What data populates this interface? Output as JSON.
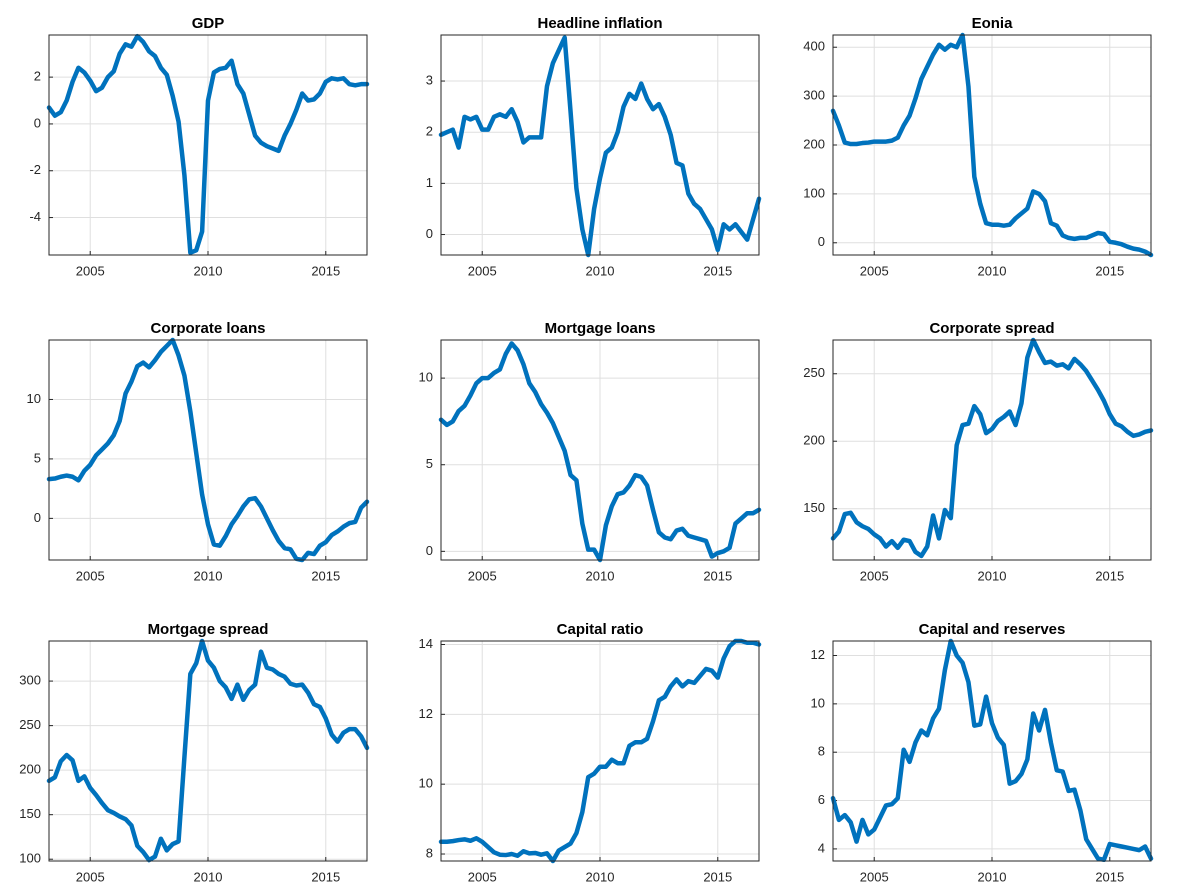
{
  "chart_data": [
    {
      "type": "line",
      "title": "GDP",
      "color": "#0072BD",
      "grid": true,
      "x": [
        2003.25,
        2003.5,
        2003.75,
        2004,
        2004.25,
        2004.5,
        2004.75,
        2005,
        2005.25,
        2005.5,
        2005.75,
        2006,
        2006.25,
        2006.5,
        2006.75,
        2007,
        2007.25,
        2007.5,
        2007.75,
        2008,
        2008.25,
        2008.5,
        2008.75,
        2009,
        2009.25,
        2009.5,
        2009.75,
        2010,
        2010.25,
        2010.5,
        2010.75,
        2011,
        2011.25,
        2011.5,
        2011.75,
        2012,
        2012.25,
        2012.5,
        2012.75,
        2013,
        2013.25,
        2013.5,
        2013.75,
        2014,
        2014.25,
        2014.5,
        2014.75,
        2015,
        2015.25,
        2015.5,
        2015.75,
        2016,
        2016.25,
        2016.5,
        2016.75
      ],
      "values": [
        0.7,
        0.35,
        0.5,
        1.0,
        1.8,
        2.4,
        2.2,
        1.85,
        1.4,
        1.55,
        2.0,
        2.25,
        3.0,
        3.4,
        3.3,
        3.75,
        3.5,
        3.1,
        2.9,
        2.4,
        2.1,
        1.2,
        0.1,
        -2.2,
        -5.5,
        -5.4,
        -4.6,
        1.0,
        2.2,
        2.35,
        2.4,
        2.7,
        1.7,
        1.3,
        0.4,
        -0.5,
        -0.8,
        -0.95,
        -1.05,
        -1.15,
        -0.5,
        0.0,
        0.6,
        1.3,
        1.0,
        1.05,
        1.3,
        1.8,
        1.95,
        1.9,
        1.95,
        1.7,
        1.65,
        1.7,
        1.7
      ],
      "xlim": [
        2003.25,
        2016.75
      ],
      "xticks": [
        2005,
        2010,
        2015
      ],
      "ylim": [
        -5.6,
        3.8
      ],
      "yticks": [
        -4,
        -2,
        0,
        2
      ]
    },
    {
      "type": "line",
      "title": "Headline inflation",
      "color": "#0072BD",
      "grid": true,
      "x": [
        2003.25,
        2003.5,
        2003.75,
        2004,
        2004.25,
        2004.5,
        2004.75,
        2005,
        2005.25,
        2005.5,
        2005.75,
        2006,
        2006.25,
        2006.5,
        2006.75,
        2007,
        2007.25,
        2007.5,
        2007.75,
        2008,
        2008.25,
        2008.5,
        2008.75,
        2009,
        2009.25,
        2009.5,
        2009.75,
        2010,
        2010.25,
        2010.5,
        2010.75,
        2011,
        2011.25,
        2011.5,
        2011.75,
        2012,
        2012.25,
        2012.5,
        2012.75,
        2013,
        2013.25,
        2013.5,
        2013.75,
        2014,
        2014.25,
        2014.5,
        2014.75,
        2015,
        2015.25,
        2015.5,
        2015.75,
        2016,
        2016.25,
        2016.5,
        2016.75
      ],
      "values": [
        1.95,
        2.0,
        2.05,
        1.7,
        2.3,
        2.25,
        2.3,
        2.05,
        2.05,
        2.3,
        2.35,
        2.3,
        2.45,
        2.2,
        1.8,
        1.9,
        1.9,
        1.9,
        2.9,
        3.35,
        3.6,
        3.85,
        2.4,
        0.9,
        0.1,
        -0.4,
        0.5,
        1.1,
        1.6,
        1.7,
        2.0,
        2.5,
        2.75,
        2.65,
        2.95,
        2.65,
        2.45,
        2.55,
        2.3,
        1.95,
        1.4,
        1.35,
        0.8,
        0.6,
        0.5,
        0.3,
        0.1,
        -0.3,
        0.2,
        0.1,
        0.2,
        0.05,
        -0.1,
        0.3,
        0.7
      ],
      "xlim": [
        2003.25,
        2016.75
      ],
      "xticks": [
        2005,
        2010,
        2015
      ],
      "ylim": [
        -0.4,
        3.9
      ],
      "yticks": [
        0,
        1,
        2,
        3
      ]
    },
    {
      "type": "line",
      "title": "Eonia",
      "color": "#0072BD",
      "grid": true,
      "x": [
        2003.25,
        2003.5,
        2003.75,
        2004,
        2004.25,
        2004.5,
        2004.75,
        2005,
        2005.25,
        2005.5,
        2005.75,
        2006,
        2006.25,
        2006.5,
        2006.75,
        2007,
        2007.25,
        2007.5,
        2007.75,
        2008,
        2008.25,
        2008.5,
        2008.75,
        2009,
        2009.25,
        2009.5,
        2009.75,
        2010,
        2010.25,
        2010.5,
        2010.75,
        2011,
        2011.25,
        2011.5,
        2011.75,
        2012,
        2012.25,
        2012.5,
        2012.75,
        2013,
        2013.25,
        2013.5,
        2013.75,
        2014,
        2014.25,
        2014.5,
        2014.75,
        2015,
        2015.25,
        2015.5,
        2015.75,
        2016,
        2016.25,
        2016.5,
        2016.75
      ],
      "values": [
        270,
        240,
        205,
        202,
        202,
        204,
        205,
        207,
        207,
        207,
        209,
        215,
        240,
        260,
        295,
        335,
        360,
        385,
        405,
        395,
        405,
        400,
        425,
        320,
        135,
        80,
        40,
        37,
        37,
        35,
        37,
        50,
        60,
        70,
        105,
        100,
        85,
        40,
        35,
        15,
        10,
        8,
        10,
        10,
        15,
        20,
        18,
        2,
        0,
        -3,
        -8,
        -12,
        -14,
        -18,
        -25
      ],
      "xlim": [
        2003.25,
        2016.75
      ],
      "xticks": [
        2005,
        2010,
        2015
      ],
      "ylim": [
        -25,
        425
      ],
      "yticks": [
        0,
        100,
        200,
        300,
        400
      ]
    },
    {
      "type": "line",
      "title": "Corporate loans",
      "color": "#0072BD",
      "grid": true,
      "x": [
        2003.25,
        2003.5,
        2003.75,
        2004,
        2004.25,
        2004.5,
        2004.75,
        2005,
        2005.25,
        2005.5,
        2005.75,
        2006,
        2006.25,
        2006.5,
        2006.75,
        2007,
        2007.25,
        2007.5,
        2007.75,
        2008,
        2008.25,
        2008.5,
        2008.75,
        2009,
        2009.25,
        2009.5,
        2009.75,
        2010,
        2010.25,
        2010.5,
        2010.75,
        2011,
        2011.25,
        2011.5,
        2011.75,
        2012,
        2012.25,
        2012.5,
        2012.75,
        2013,
        2013.25,
        2013.5,
        2013.75,
        2014,
        2014.25,
        2014.5,
        2014.75,
        2015,
        2015.25,
        2015.5,
        2015.75,
        2016,
        2016.25,
        2016.5,
        2016.75
      ],
      "values": [
        3.3,
        3.35,
        3.5,
        3.6,
        3.5,
        3.2,
        4.0,
        4.5,
        5.3,
        5.8,
        6.3,
        7.0,
        8.2,
        10.5,
        11.5,
        12.8,
        13.1,
        12.7,
        13.3,
        14.0,
        14.5,
        15.0,
        13.7,
        12.0,
        9.0,
        5.5,
        2.0,
        -0.5,
        -2.2,
        -2.3,
        -1.5,
        -0.5,
        0.2,
        1.0,
        1.6,
        1.7,
        1.0,
        0.0,
        -1.0,
        -1.9,
        -2.5,
        -2.6,
        -3.4,
        -3.5,
        -2.9,
        -3.0,
        -2.3,
        -2.0,
        -1.4,
        -1.1,
        -0.7,
        -0.4,
        -0.3,
        0.9,
        1.4
      ],
      "xlim": [
        2003.25,
        2016.75
      ],
      "xticks": [
        2005,
        2010,
        2015
      ],
      "ylim": [
        -3.5,
        15
      ],
      "yticks": [
        0,
        5,
        10
      ]
    },
    {
      "type": "line",
      "title": "Mortgage loans",
      "color": "#0072BD",
      "grid": true,
      "x": [
        2003.25,
        2003.5,
        2003.75,
        2004,
        2004.25,
        2004.5,
        2004.75,
        2005,
        2005.25,
        2005.5,
        2005.75,
        2006,
        2006.25,
        2006.5,
        2006.75,
        2007,
        2007.25,
        2007.5,
        2007.75,
        2008,
        2008.25,
        2008.5,
        2008.75,
        2009,
        2009.25,
        2009.5,
        2009.75,
        2010,
        2010.25,
        2010.5,
        2010.75,
        2011,
        2011.25,
        2011.5,
        2011.75,
        2012,
        2012.25,
        2012.5,
        2012.75,
        2013,
        2013.25,
        2013.5,
        2013.75,
        2014,
        2014.25,
        2014.5,
        2014.75,
        2015,
        2015.25,
        2015.5,
        2015.75,
        2016,
        2016.25,
        2016.5,
        2016.75
      ],
      "values": [
        7.6,
        7.3,
        7.5,
        8.1,
        8.4,
        9.0,
        9.7,
        10.0,
        10.0,
        10.3,
        10.5,
        11.4,
        12.0,
        11.6,
        10.8,
        9.7,
        9.2,
        8.5,
        8.0,
        7.4,
        6.6,
        5.8,
        4.4,
        4.1,
        1.6,
        0.1,
        0.1,
        -0.5,
        1.5,
        2.6,
        3.3,
        3.4,
        3.8,
        4.4,
        4.3,
        3.8,
        2.4,
        1.1,
        0.8,
        0.7,
        1.2,
        1.3,
        0.9,
        0.8,
        0.7,
        0.6,
        -0.3,
        -0.1,
        0.0,
        0.2,
        1.6,
        1.9,
        2.2,
        2.2,
        2.4
      ],
      "xlim": [
        2003.25,
        2016.75
      ],
      "xticks": [
        2005,
        2010,
        2015
      ],
      "ylim": [
        -0.5,
        12.2
      ],
      "yticks": [
        0,
        5,
        10
      ]
    },
    {
      "type": "line",
      "title": "Corporate spread",
      "color": "#0072BD",
      "grid": true,
      "x": [
        2003.25,
        2003.5,
        2003.75,
        2004,
        2004.25,
        2004.5,
        2004.75,
        2005,
        2005.25,
        2005.5,
        2005.75,
        2006,
        2006.25,
        2006.5,
        2006.75,
        2007,
        2007.25,
        2007.5,
        2007.75,
        2008,
        2008.25,
        2008.5,
        2008.75,
        2009,
        2009.25,
        2009.5,
        2009.75,
        2010,
        2010.25,
        2010.5,
        2010.75,
        2011,
        2011.25,
        2011.5,
        2011.75,
        2012,
        2012.25,
        2012.5,
        2012.75,
        2013,
        2013.25,
        2013.5,
        2013.75,
        2014,
        2014.25,
        2014.5,
        2014.75,
        2015,
        2015.25,
        2015.5,
        2015.75,
        2016,
        2016.25,
        2016.5,
        2016.75
      ],
      "values": [
        128,
        133,
        146,
        147,
        140,
        137,
        135,
        131,
        128,
        122,
        126,
        121,
        127,
        126,
        118,
        115,
        122,
        145,
        128,
        149,
        143,
        197,
        212,
        213,
        226,
        220,
        206,
        209,
        215,
        218,
        222,
        212,
        228,
        262,
        275,
        266,
        258,
        259,
        256,
        257,
        254,
        261,
        257,
        252,
        245,
        238,
        230,
        220,
        213,
        211,
        207,
        204,
        205,
        207,
        208
      ],
      "xlim": [
        2003.25,
        2016.75
      ],
      "xticks": [
        2005,
        2010,
        2015
      ],
      "ylim": [
        112,
        275
      ],
      "yticks": [
        150,
        200,
        250
      ]
    },
    {
      "type": "line",
      "title": "Mortgage spread",
      "color": "#0072BD",
      "grid": true,
      "x": [
        2003.25,
        2003.5,
        2003.75,
        2004,
        2004.25,
        2004.5,
        2004.75,
        2005,
        2005.25,
        2005.5,
        2005.75,
        2006,
        2006.25,
        2006.5,
        2006.75,
        2007,
        2007.25,
        2007.5,
        2007.75,
        2008,
        2008.25,
        2008.5,
        2008.75,
        2009,
        2009.25,
        2009.5,
        2009.75,
        2010,
        2010.25,
        2010.5,
        2010.75,
        2011,
        2011.25,
        2011.5,
        2011.75,
        2012,
        2012.25,
        2012.5,
        2012.75,
        2013,
        2013.25,
        2013.5,
        2013.75,
        2014,
        2014.25,
        2014.5,
        2014.75,
        2015,
        2015.25,
        2015.5,
        2015.75,
        2016,
        2016.25,
        2016.5,
        2016.75
      ],
      "values": [
        188,
        192,
        210,
        217,
        211,
        188,
        193,
        180,
        172,
        163,
        155,
        152,
        148,
        145,
        138,
        115,
        108,
        99,
        103,
        123,
        110,
        117,
        120,
        215,
        308,
        320,
        345,
        323,
        315,
        300,
        293,
        280,
        296,
        279,
        290,
        296,
        333,
        315,
        313,
        308,
        305,
        297,
        295,
        296,
        287,
        274,
        271,
        258,
        240,
        232,
        242,
        246,
        246,
        238,
        225
      ],
      "xlim": [
        2003.25,
        2016.75
      ],
      "xticks": [
        2005,
        2010,
        2015
      ],
      "ylim": [
        98,
        345
      ],
      "yticks": [
        100,
        150,
        200,
        250,
        300
      ]
    },
    {
      "type": "line",
      "title": "Capital ratio",
      "color": "#0072BD",
      "grid": true,
      "x": [
        2003.25,
        2003.5,
        2003.75,
        2004,
        2004.25,
        2004.5,
        2004.75,
        2005,
        2005.25,
        2005.5,
        2005.75,
        2006,
        2006.25,
        2006.5,
        2006.75,
        2007,
        2007.25,
        2007.5,
        2007.75,
        2008,
        2008.25,
        2008.5,
        2008.75,
        2009,
        2009.25,
        2009.5,
        2009.75,
        2010,
        2010.25,
        2010.5,
        2010.75,
        2011,
        2011.25,
        2011.5,
        2011.75,
        2012,
        2012.25,
        2012.5,
        2012.75,
        2013,
        2013.25,
        2013.5,
        2013.75,
        2014,
        2014.25,
        2014.5,
        2014.75,
        2015,
        2015.25,
        2015.5,
        2015.75,
        2016,
        2016.25,
        2016.5,
        2016.75
      ],
      "values": [
        8.35,
        8.35,
        8.37,
        8.4,
        8.42,
        8.38,
        8.45,
        8.35,
        8.2,
        8.05,
        7.98,
        7.97,
        8.0,
        7.95,
        8.08,
        8.02,
        8.03,
        7.98,
        8.02,
        7.8,
        8.1,
        8.2,
        8.3,
        8.6,
        9.2,
        10.2,
        10.3,
        10.5,
        10.5,
        10.7,
        10.6,
        10.6,
        11.1,
        11.2,
        11.2,
        11.3,
        11.8,
        12.4,
        12.5,
        12.8,
        13.0,
        12.8,
        12.95,
        12.9,
        13.1,
        13.3,
        13.25,
        13.05,
        13.6,
        13.95,
        14.1,
        14.1,
        14.05,
        14.05,
        14.0
      ],
      "xlim": [
        2003.25,
        2016.75
      ],
      "xticks": [
        2005,
        2010,
        2015
      ],
      "ylim": [
        7.8,
        14.1
      ],
      "yticks": [
        8,
        10,
        12,
        14
      ]
    },
    {
      "type": "line",
      "title": "Capital and reserves",
      "color": "#0072BD",
      "grid": true,
      "x": [
        2003.25,
        2003.5,
        2003.75,
        2004,
        2004.25,
        2004.5,
        2004.75,
        2005,
        2005.25,
        2005.5,
        2005.75,
        2006,
        2006.25,
        2006.5,
        2006.75,
        2007,
        2007.25,
        2007.5,
        2007.75,
        2008,
        2008.25,
        2008.5,
        2008.75,
        2009,
        2009.25,
        2009.5,
        2009.75,
        2010,
        2010.25,
        2010.5,
        2010.75,
        2011,
        2011.25,
        2011.5,
        2011.75,
        2012,
        2012.25,
        2012.5,
        2012.75,
        2013,
        2013.25,
        2013.5,
        2013.75,
        2014,
        2014.25,
        2014.5,
        2014.75,
        2015,
        2015.25,
        2015.5,
        2015.75,
        2016,
        2016.25,
        2016.5,
        2016.75
      ],
      "values": [
        6.1,
        5.2,
        5.4,
        5.1,
        4.3,
        5.2,
        4.6,
        4.8,
        5.3,
        5.8,
        5.85,
        6.1,
        8.1,
        7.6,
        8.4,
        8.9,
        8.7,
        9.4,
        9.8,
        11.4,
        12.6,
        12.0,
        11.7,
        10.9,
        9.1,
        9.15,
        10.3,
        9.2,
        8.6,
        8.3,
        6.7,
        6.8,
        7.1,
        7.7,
        9.6,
        8.9,
        9.75,
        8.4,
        7.25,
        7.2,
        6.4,
        6.45,
        5.6,
        4.4,
        4.0,
        3.6,
        3.55,
        4.2,
        4.15,
        4.1,
        4.05,
        4.0,
        3.95,
        4.1,
        3.6
      ],
      "xlim": [
        2003.25,
        2016.75
      ],
      "xticks": [
        2005,
        2010,
        2015
      ],
      "ylim": [
        3.5,
        12.6
      ],
      "yticks": [
        4,
        6,
        8,
        10,
        12
      ]
    }
  ]
}
